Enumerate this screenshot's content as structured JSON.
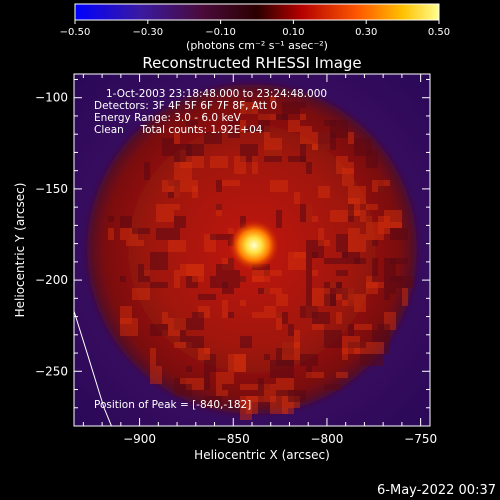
{
  "colorbar": {
    "ticks": [
      "-0.50",
      "-0.30",
      "-0.10",
      "0.10",
      "0.30",
      "0.50"
    ],
    "range": [
      -0.5,
      0.5
    ],
    "units_label": "(photons cm⁻² s⁻¹ asec⁻²)"
  },
  "chart_data": {
    "type": "heatmap",
    "title": "Reconstructed RHESSI Image",
    "xlabel": "Heliocentric X (arcsec)",
    "ylabel": "Heliocentric Y (arcsec)",
    "xlim": [
      -935,
      -745
    ],
    "ylim": [
      -280,
      -87
    ],
    "x_ticks": [
      -900,
      -850,
      -800,
      -750
    ],
    "y_ticks": [
      -100,
      -150,
      -200,
      -250
    ],
    "x_tick_labels": [
      "−900",
      "−850",
      "−800",
      "−750"
    ],
    "y_tick_labels": [
      "−100",
      "−150",
      "−200",
      "−250"
    ],
    "peak": {
      "x": -840,
      "y": -182
    },
    "disk_center": {
      "x": -840,
      "y": -183
    },
    "disk_radius_arcsec": 88,
    "limb_line": [
      [
        -935,
        -217
      ],
      [
        -928,
        -240
      ],
      [
        -919,
        -270
      ],
      [
        -915,
        -280
      ]
    ],
    "info_lines": [
      "1-Oct-2003 23:18:48.000 to 23:24:48.000",
      "Detectors: 3F 4F 5F 6F 7F 8F, Att 0",
      "Energy Range: 3.0 - 6.0 keV",
      "Clean     Total counts: 1.92E+04"
    ],
    "peak_label": "Position of Peak = [-840,-182]"
  },
  "timestamp": "6-May-2022 00:37",
  "colors": {
    "background": "#000000",
    "axis": "#ffffff",
    "outer_plasma": "#3a0a5a"
  }
}
